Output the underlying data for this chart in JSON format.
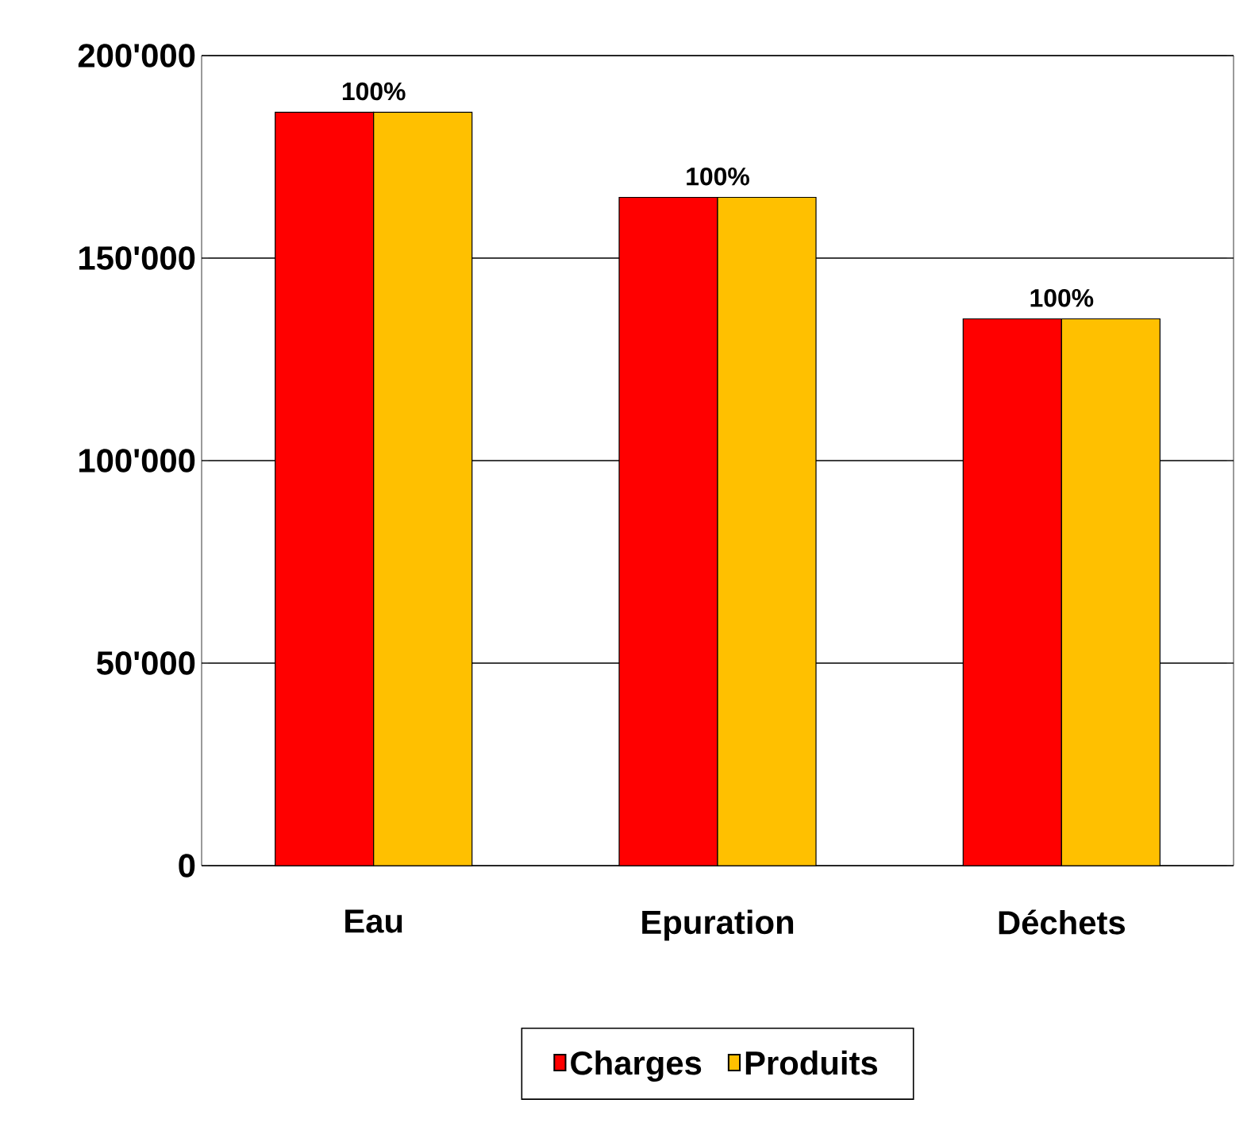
{
  "chart_data": {
    "type": "bar",
    "categories": [
      "Eau",
      "Epuration",
      "Déchets"
    ],
    "series": [
      {
        "name": "Charges",
        "color": "#ff0000",
        "values": [
          186000,
          165000,
          135000
        ]
      },
      {
        "name": "Produits",
        "color": "#ffc000",
        "values": [
          186000,
          165000,
          135000
        ]
      }
    ],
    "ylim": [
      0,
      200000
    ],
    "yticks": [
      {
        "value": 0,
        "label": "0"
      },
      {
        "value": 50000,
        "label": "50'000"
      },
      {
        "value": 100000,
        "label": "100'000"
      },
      {
        "value": 150000,
        "label": "150'000"
      },
      {
        "value": 200000,
        "label": "200'000"
      }
    ],
    "grid": "y",
    "legend": "bottom",
    "annotations": [
      {
        "text": "100%",
        "x": "Eau",
        "y": 186000
      },
      {
        "text": "100%",
        "x": "Epuration",
        "y": 165000
      },
      {
        "text": "100%",
        "x": "Déchets",
        "y": 135000
      }
    ]
  }
}
